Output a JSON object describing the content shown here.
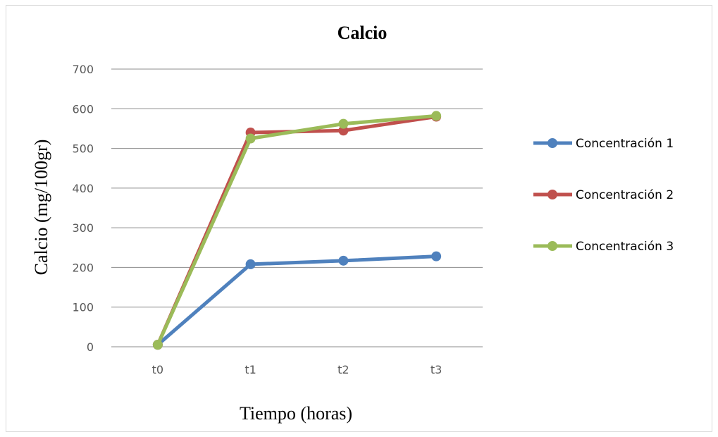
{
  "chart_data": {
    "type": "line",
    "title": "Calcio",
    "xlabel": "Tiempo (horas)",
    "ylabel": "Calcio (mg/100gr)",
    "categories": [
      "t0",
      "t1",
      "t2",
      "t3"
    ],
    "ylim": [
      0,
      700
    ],
    "yticks": [
      0,
      100,
      200,
      300,
      400,
      500,
      600,
      700
    ],
    "grid": true,
    "legend_position": "right",
    "series": [
      {
        "name": "Concentración 1",
        "color": "#4f81bd",
        "values": [
          5,
          208,
          217,
          228
        ]
      },
      {
        "name": "Concentración 2",
        "color": "#c0504d",
        "values": [
          5,
          540,
          545,
          580
        ]
      },
      {
        "name": "Concentración 3",
        "color": "#9bbb59",
        "values": [
          5,
          525,
          562,
          582
        ]
      }
    ]
  }
}
